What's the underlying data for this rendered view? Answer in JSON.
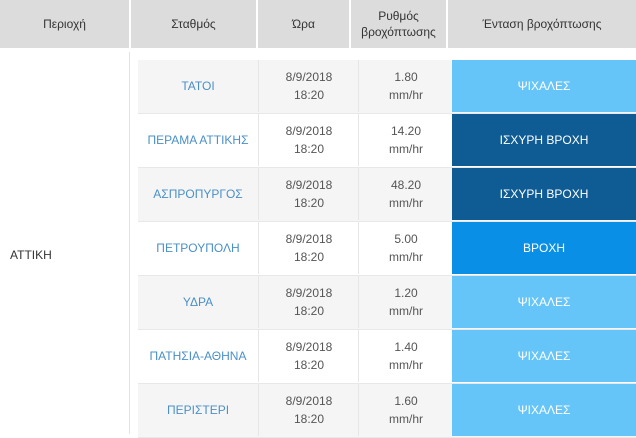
{
  "header": {
    "region": "Περιοχή",
    "station": "Σταθμός",
    "time": "Ώρα",
    "rate_line1": "Ρυθμός",
    "rate_line2": "βροχόπτωσης",
    "intensity": "Ένταση βροχόπτωσης"
  },
  "region": "ΑΤΤΙΚΗ",
  "colors": {
    "light": "#66c5f8",
    "medium": "#0a8fe6",
    "heavy": "#0f5c94"
  },
  "rows": [
    {
      "station": "ΤΑΤΟΙ",
      "date": "8/9/2018",
      "time": "18:20",
      "rate": "1.80",
      "unit": "mm/hr",
      "intensity": "ΨΙΧΑΛΕΣ",
      "level": "light"
    },
    {
      "station": "ΠΕΡΑΜΑ ΑΤΤΙΚΗΣ",
      "date": "8/9/2018",
      "time": "18:20",
      "rate": "14.20",
      "unit": "mm/hr",
      "intensity": "ΙΣΧΥΡΗ ΒΡΟΧΗ",
      "level": "heavy"
    },
    {
      "station": "ΑΣΠΡΟΠΥΡΓΟΣ",
      "date": "8/9/2018",
      "time": "18:20",
      "rate": "48.20",
      "unit": "mm/hr",
      "intensity": "ΙΣΧΥΡΗ ΒΡΟΧΗ",
      "level": "heavy"
    },
    {
      "station": "ΠΕΤΡΟΥΠΟΛΗ",
      "date": "8/9/2018",
      "time": "18:20",
      "rate": "5.00",
      "unit": "mm/hr",
      "intensity": "ΒΡΟΧΗ",
      "level": "medium"
    },
    {
      "station": "ΥΔΡΑ",
      "date": "8/9/2018",
      "time": "18:20",
      "rate": "1.20",
      "unit": "mm/hr",
      "intensity": "ΨΙΧΑΛΕΣ",
      "level": "light"
    },
    {
      "station": "ΠΑΤΗΣΙΑ-ΑΘΗΝΑ",
      "date": "8/9/2018",
      "time": "18:20",
      "rate": "1.40",
      "unit": "mm/hr",
      "intensity": "ΨΙΧΑΛΕΣ",
      "level": "light"
    },
    {
      "station": "ΠΕΡΙΣΤΕΡΙ",
      "date": "8/9/2018",
      "time": "18:20",
      "rate": "1.60",
      "unit": "mm/hr",
      "intensity": "ΨΙΧΑΛΕΣ",
      "level": "light"
    }
  ]
}
